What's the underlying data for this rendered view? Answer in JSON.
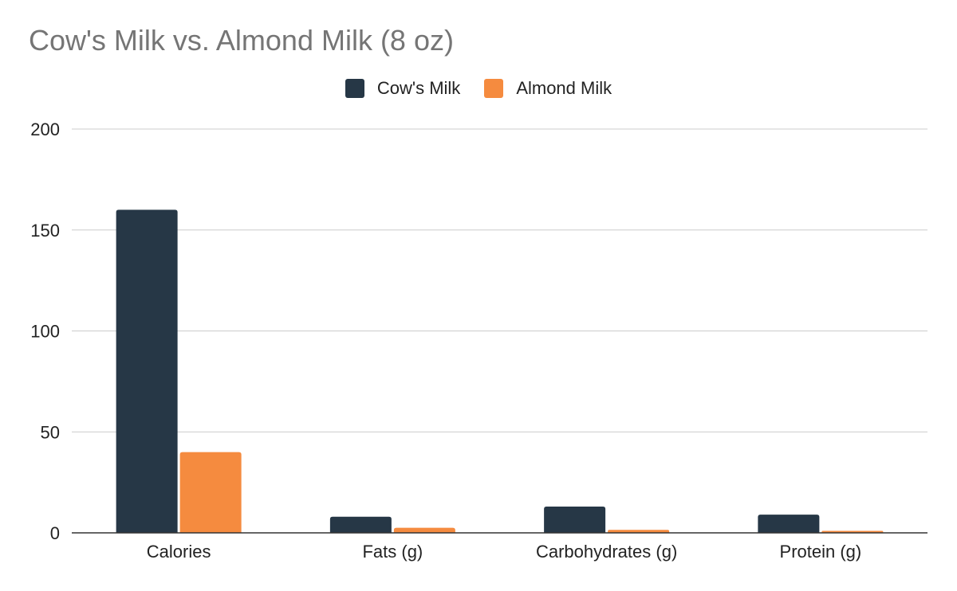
{
  "chart_data": {
    "type": "bar",
    "title": "Cow's Milk vs. Almond Milk (8 oz)",
    "categories": [
      "Calories",
      "Fats (g)",
      "Carbohydrates (g)",
      "Protein (g)"
    ],
    "series": [
      {
        "name": "Cow's Milk",
        "values": [
          160,
          8,
          13,
          9
        ],
        "color": "#263746"
      },
      {
        "name": "Almond Milk",
        "values": [
          40,
          2.5,
          1.5,
          1
        ],
        "color": "#f58b3f"
      }
    ],
    "y_ticks": [
      "0",
      "50",
      "100",
      "150",
      "200"
    ],
    "ylim": [
      0,
      200
    ],
    "xlabel": "",
    "ylabel": "",
    "grid": true,
    "legend_position": "top-center"
  }
}
